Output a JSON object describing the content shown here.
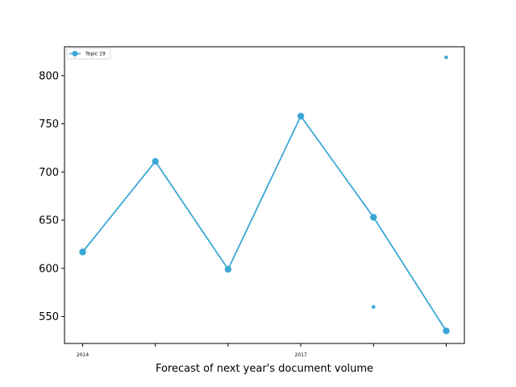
{
  "chart_data": {
    "type": "line",
    "xlabel": "Forecast of next year's document volume",
    "ylabel": "",
    "title": "",
    "x": [
      2014,
      2015,
      2016,
      2017,
      2018,
      2019
    ],
    "x_tick_labels": [
      {
        "x": 2014,
        "label": "2014"
      },
      {
        "x": 2015,
        "label": ""
      },
      {
        "x": 2016,
        "label": ""
      },
      {
        "x": 2017,
        "label": "2017"
      },
      {
        "x": 2018,
        "label": ""
      },
      {
        "x": 2019,
        "label": ""
      }
    ],
    "xlim": [
      2013.75,
      2019.25
    ],
    "ylim": [
      522,
      830
    ],
    "yticks": [
      550,
      600,
      650,
      700,
      750,
      800
    ],
    "series": [
      {
        "name": "Topic 19",
        "color": "#3ba7d6",
        "values": [
          617,
          711,
          599,
          758,
          653,
          535
        ]
      }
    ],
    "interval_points": [
      {
        "x": 2018,
        "y": 560
      },
      {
        "x": 2019,
        "y": 819
      }
    ],
    "grid": false,
    "legend_position": "upper-left"
  }
}
